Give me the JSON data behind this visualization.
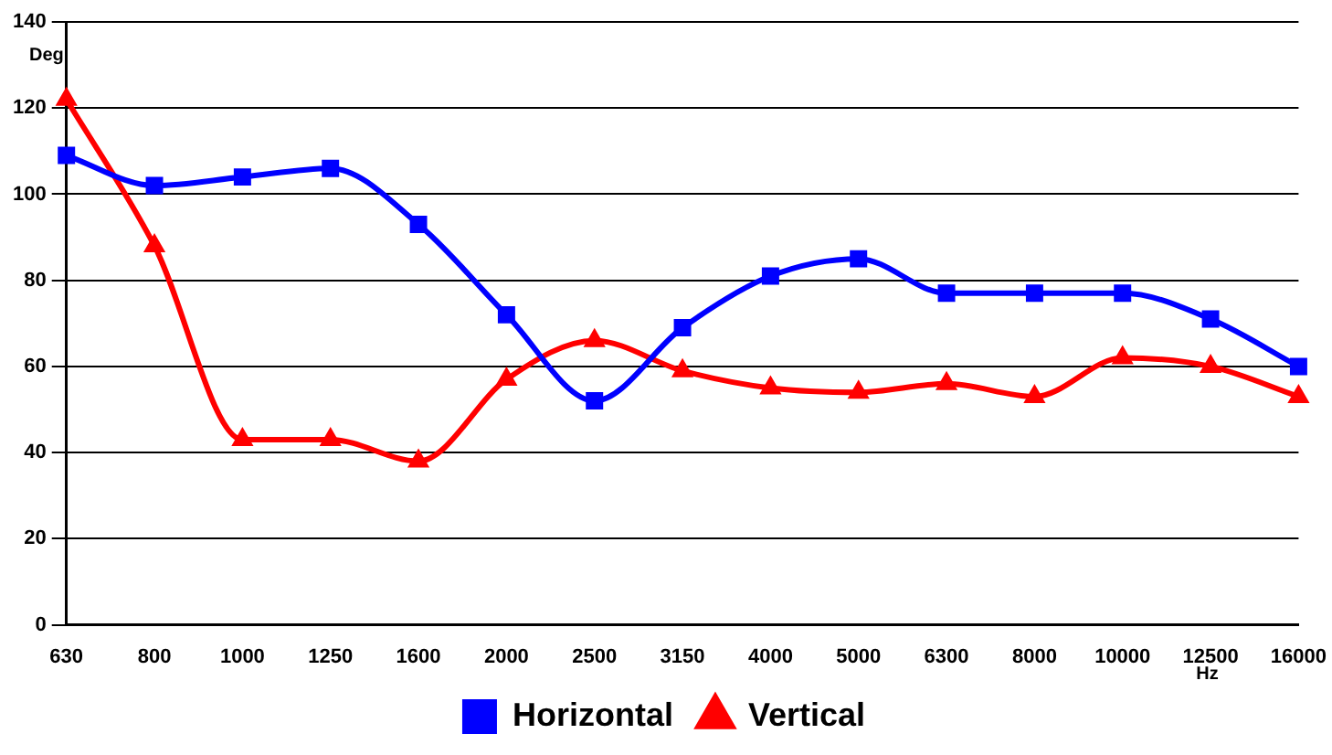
{
  "chart_data": {
    "type": "line",
    "xlabel": "Hz",
    "ylabel": "Deg",
    "categories": [
      "630",
      "800",
      "1000",
      "1250",
      "1600",
      "2000",
      "2500",
      "3150",
      "4000",
      "5000",
      "6300",
      "8000",
      "10000",
      "12500",
      "16000"
    ],
    "series": [
      {
        "name": "Horizontal",
        "color": "#0000ff",
        "marker": "square",
        "values": [
          109,
          102,
          104,
          106,
          93,
          72,
          52,
          69,
          81,
          85,
          77,
          77,
          77,
          71,
          60
        ]
      },
      {
        "name": "Vertical",
        "color": "#ff0000",
        "marker": "triangle",
        "values": [
          122,
          88,
          43,
          43,
          38,
          57,
          66,
          59,
          55,
          54,
          56,
          53,
          62,
          60,
          53
        ]
      }
    ],
    "ylim": [
      0,
      140
    ],
    "yticks": [
      0,
      20,
      40,
      60,
      80,
      100,
      120,
      140
    ],
    "grid": "y",
    "legend": "bottom"
  }
}
